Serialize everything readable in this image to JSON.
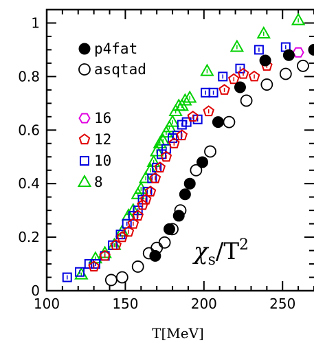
{
  "chart_data": {
    "type": "scatter",
    "title": "",
    "xlabel": "T[MeV]",
    "ylabel": "",
    "xlim": [
      100,
      270
    ],
    "ylim": [
      0,
      1.05
    ],
    "xticks": [
      100,
      150,
      200,
      250
    ],
    "yticks": [
      0,
      0.2,
      0.4,
      0.6,
      0.8,
      1
    ],
    "xtick_labels": [
      "100",
      "150",
      "200",
      "250"
    ],
    "ytick_labels": [
      "0",
      "0.2",
      "0.4",
      "0.6",
      "0.8",
      "1"
    ],
    "annotation": {
      "symbol": "χ",
      "subscript": "s",
      "slash": "/T",
      "superscript": "2"
    },
    "legend_top": [
      {
        "label": "p4fat",
        "marker": "filled-circle",
        "color": "#000000"
      },
      {
        "label": "asqtad",
        "marker": "open-circle",
        "color": "#000000"
      }
    ],
    "legend_bottom": [
      {
        "label": "16",
        "marker": "hexagon",
        "color": "#e000e0"
      },
      {
        "label": "12",
        "marker": "pentagon",
        "color": "#e00000"
      },
      {
        "label": "10",
        "marker": "square",
        "color": "#0000e0"
      },
      {
        "label": "8",
        "marker": "triangle",
        "color": "#00d000"
      }
    ],
    "series": [
      {
        "name": "p4fat",
        "marker": "filled-circle",
        "color": "#000000",
        "x": [
          169,
          178,
          184,
          188,
          191,
          199,
          209,
          223,
          239,
          254,
          270
        ],
        "y": [
          0.13,
          0.23,
          0.28,
          0.36,
          0.4,
          0.48,
          0.63,
          0.76,
          0.86,
          0.88,
          0.9
        ]
      },
      {
        "name": "asqtad",
        "marker": "open-circle",
        "color": "#000000",
        "x": [
          141,
          148,
          158,
          165,
          170,
          175,
          180,
          185,
          195,
          204,
          216,
          227,
          240,
          252,
          263
        ],
        "y": [
          0.04,
          0.05,
          0.09,
          0.14,
          0.16,
          0.18,
          0.23,
          0.3,
          0.45,
          0.52,
          0.63,
          0.71,
          0.77,
          0.81,
          0.84
        ]
      },
      {
        "name": "16",
        "marker": "hexagon",
        "color": "#e000e0",
        "x": [
          260
        ],
        "y": [
          0.89
        ]
      },
      {
        "name": "12",
        "marker": "pentagon",
        "color": "#e00000",
        "x": [
          130,
          137,
          144,
          148,
          152,
          155,
          158,
          161,
          163,
          166,
          169,
          172,
          176,
          181,
          186,
          193,
          203,
          213,
          219,
          225,
          232,
          240
        ],
        "y": [
          0.09,
          0.13,
          0.17,
          0.2,
          0.22,
          0.25,
          0.28,
          0.32,
          0.34,
          0.37,
          0.42,
          0.46,
          0.5,
          0.55,
          0.58,
          0.65,
          0.67,
          0.75,
          0.79,
          0.81,
          0.8,
          0.84
        ]
      },
      {
        "name": "10",
        "marker": "square",
        "color": "#0000e0",
        "x": [
          113,
          121,
          127,
          131,
          137,
          142,
          147,
          151,
          155,
          158,
          161,
          164,
          167,
          170,
          173,
          176,
          180,
          183,
          186,
          189,
          196,
          201,
          206,
          212,
          223,
          235,
          252
        ],
        "y": [
          0.05,
          0.07,
          0.1,
          0.1,
          0.13,
          0.17,
          0.21,
          0.25,
          0.28,
          0.3,
          0.34,
          0.37,
          0.42,
          0.46,
          0.51,
          0.53,
          0.57,
          0.58,
          0.62,
          0.63,
          0.64,
          0.74,
          0.74,
          0.8,
          0.83,
          0.9,
          0.91
        ]
      },
      {
        "name": "8",
        "marker": "triangle",
        "color": "#00d000",
        "x": [
          122,
          131,
          137,
          143,
          148,
          152,
          155,
          158,
          160,
          163,
          166,
          168,
          170,
          172,
          174,
          176,
          178,
          180,
          182,
          184,
          186,
          188,
          191,
          202,
          221,
          238,
          260
        ],
        "y": [
          0.06,
          0.12,
          0.14,
          0.17,
          0.22,
          0.28,
          0.3,
          0.36,
          0.38,
          0.42,
          0.45,
          0.48,
          0.52,
          0.55,
          0.56,
          0.59,
          0.61,
          0.63,
          0.67,
          0.69,
          0.69,
          0.71,
          0.72,
          0.82,
          0.91,
          0.96,
          1.01
        ]
      }
    ]
  }
}
